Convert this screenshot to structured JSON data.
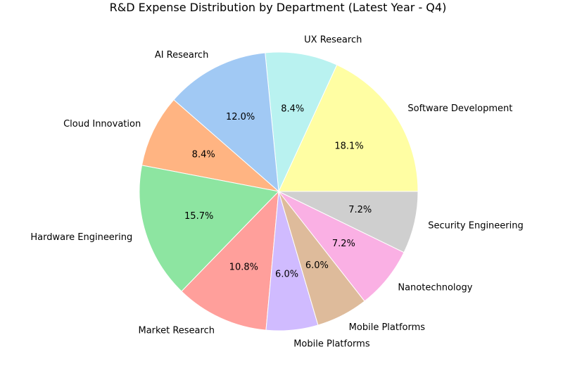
{
  "chart_data": {
    "type": "pie",
    "title": "R&D Expense Distribution by Department (Latest Year - Q4)",
    "start_angle_deg": 0,
    "direction": "counterclockwise",
    "slices": [
      {
        "label": "Software Development",
        "value": 18.1,
        "pct_label": "18.1%",
        "color": "#fffea3"
      },
      {
        "label": "UX Research",
        "value": 8.4,
        "pct_label": "8.4%",
        "color": "#b9f2f0"
      },
      {
        "label": "AI Research",
        "value": 12.0,
        "pct_label": "12.0%",
        "color": "#a1c9f4"
      },
      {
        "label": "Cloud Innovation",
        "value": 8.4,
        "pct_label": "8.4%",
        "color": "#ffb482"
      },
      {
        "label": "Hardware Engineering",
        "value": 15.7,
        "pct_label": "15.7%",
        "color": "#8de5a1"
      },
      {
        "label": "Market Research",
        "value": 10.8,
        "pct_label": "10.8%",
        "color": "#ff9f9b"
      },
      {
        "label": "Mobile Platforms",
        "value": 6.0,
        "pct_label": "6.0%",
        "color": "#d0bbff"
      },
      {
        "label": "Mobile Platforms",
        "value": 6.0,
        "pct_label": "6.0%",
        "color": "#debb9b"
      },
      {
        "label": "Nanotechnology",
        "value": 7.2,
        "pct_label": "7.2%",
        "color": "#fab0e4"
      },
      {
        "label": "Security Engineering",
        "value": 7.2,
        "pct_label": "7.2%",
        "color": "#cfcfcf"
      }
    ]
  }
}
